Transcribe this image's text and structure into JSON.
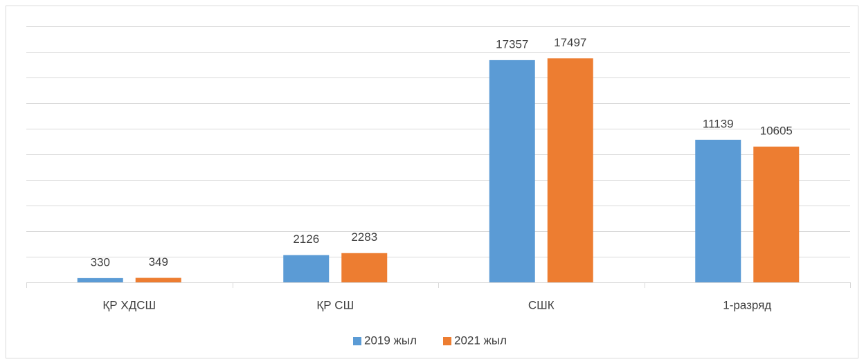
{
  "chart_data": {
    "type": "bar",
    "categories": [
      "ҚР ХДСШ",
      "ҚР СШ",
      "СШК",
      "1-разряд"
    ],
    "series": [
      {
        "name": "2019 жыл",
        "color": "#5b9bd5",
        "values": [
          330,
          2126,
          17357,
          11139
        ]
      },
      {
        "name": "2021 жыл",
        "color": "#ed7d31",
        "values": [
          349,
          2283,
          17497,
          10605
        ]
      }
    ],
    "ylim": [
      0,
      20000
    ],
    "yticks": [
      0,
      2000,
      4000,
      6000,
      8000,
      10000,
      12000,
      14000,
      16000,
      18000,
      20000
    ],
    "grid": true,
    "legend": "bottom"
  }
}
